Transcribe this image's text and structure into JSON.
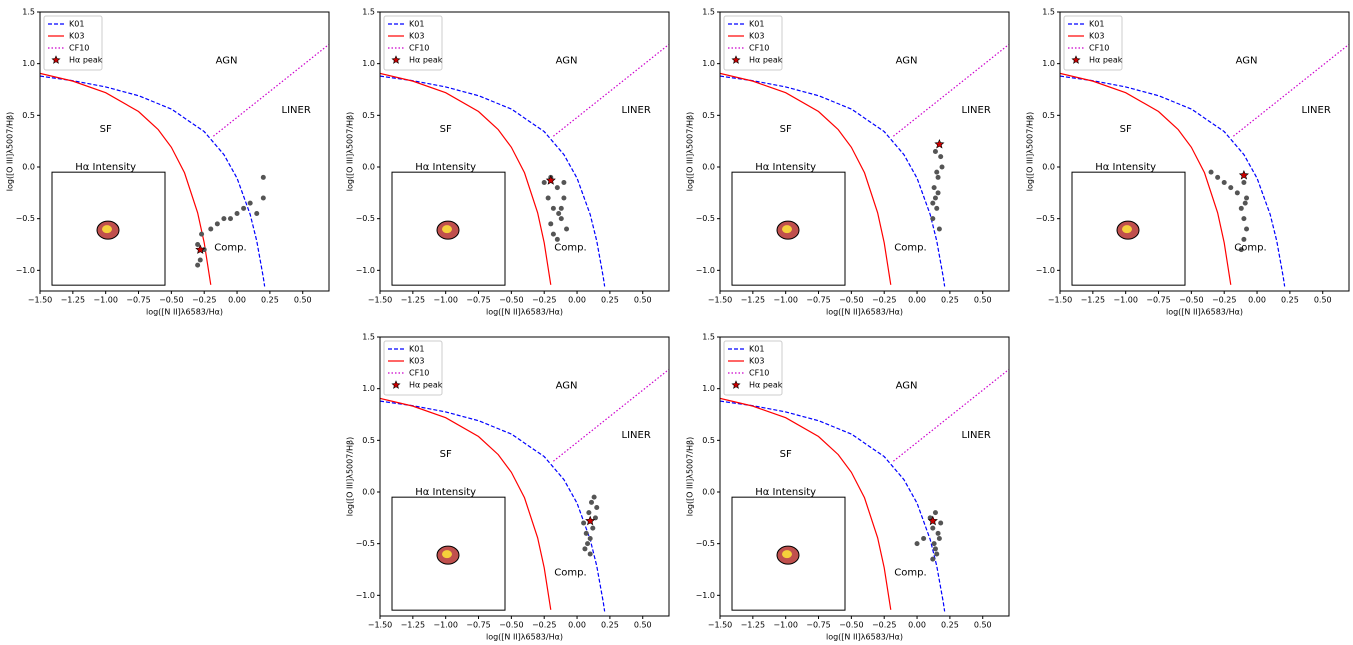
{
  "axes": {
    "xlabel": "log([N II]λ6583/Hα)",
    "ylabel": "log([O III]λ5007/Hβ)",
    "xlim": [
      -1.5,
      0.7
    ],
    "ylim": [
      -1.2,
      1.5
    ],
    "xticks": [
      {
        "value": -1.5,
        "label": "−1.50"
      },
      {
        "value": -1.25,
        "label": "−1.25"
      },
      {
        "value": -1.0,
        "label": "−1.00"
      },
      {
        "value": -0.75,
        "label": "−0.75"
      },
      {
        "value": -0.5,
        "label": "−0.50"
      },
      {
        "value": -0.25,
        "label": "−0.25"
      },
      {
        "value": 0,
        "label": "0.00"
      },
      {
        "value": 0.25,
        "label": "0.25"
      },
      {
        "value": 0.5,
        "label": "0.50"
      }
    ],
    "yticks": [
      {
        "value": -1.0,
        "label": "−1.0"
      },
      {
        "value": -0.5,
        "label": "−0.5"
      },
      {
        "value": 0,
        "label": "0.0"
      },
      {
        "value": 0.5,
        "label": "0.5"
      },
      {
        "value": 1.0,
        "label": "1.0"
      },
      {
        "value": 1.5,
        "label": "1.5"
      }
    ]
  },
  "reference_lines": [
    {
      "name": "K01",
      "color": "#0000ff",
      "style": "dashed",
      "x": [
        -1.5,
        -1.25,
        -1.0,
        -0.75,
        -0.5,
        -0.25,
        -0.1,
        0.0,
        0.1,
        0.15,
        0.2,
        0.21
      ],
      "y": [
        0.88,
        0.835,
        0.775,
        0.69,
        0.561,
        0.343,
        0.12,
        -0.108,
        -0.459,
        -0.716,
        -1.069,
        -1.156
      ]
    },
    {
      "name": "K03",
      "color": "#ff0000",
      "style": "solid",
      "x": [
        -1.5,
        -1.25,
        -1.0,
        -0.75,
        -0.6,
        -0.5,
        -0.4,
        -0.3,
        -0.25,
        -0.2
      ],
      "y": [
        0.906,
        0.831,
        0.719,
        0.537,
        0.362,
        0.191,
        -0.056,
        -0.443,
        -0.733,
        -1.14
      ]
    },
    {
      "name": "CF10",
      "color": "#cc00cc",
      "style": "dotted",
      "x": [
        -0.18,
        0.7
      ],
      "y": [
        0.298,
        1.187
      ]
    }
  ],
  "region_labels": [
    "AGN",
    "SF",
    "LINER",
    "Comp.",
    "Hα Intensity"
  ],
  "chart_data": [
    {
      "type": "scatter",
      "color": "#555555",
      "x": [
        -0.3,
        -0.28,
        -0.27,
        -0.25,
        -0.2,
        -0.15,
        -0.1,
        -0.05,
        0.0,
        0.05,
        0.1,
        0.15,
        0.2,
        0.2,
        -0.3
      ],
      "y": [
        -0.75,
        -0.9,
        -0.65,
        -0.8,
        -0.6,
        -0.55,
        -0.5,
        -0.5,
        -0.45,
        -0.4,
        -0.35,
        -0.45,
        -0.3,
        -0.1,
        -0.95
      ],
      "peak": {
        "name": "Hα peak",
        "color": "#cc0000",
        "x": -0.28,
        "y": -0.8
      }
    },
    {
      "type": "scatter",
      "color": "#555555",
      "x": [
        -0.25,
        -0.22,
        -0.2,
        -0.18,
        -0.15,
        -0.12,
        -0.1,
        -0.08,
        -0.2,
        -0.15,
        -0.12,
        -0.1,
        -0.18,
        -0.14
      ],
      "y": [
        -0.15,
        -0.3,
        -0.1,
        -0.4,
        -0.2,
        -0.5,
        -0.3,
        -0.6,
        -0.55,
        -0.7,
        -0.4,
        -0.15,
        -0.65,
        -0.45
      ],
      "peak": {
        "name": "Hα peak",
        "color": "#cc0000",
        "x": -0.2,
        "y": -0.13
      }
    },
    {
      "type": "scatter",
      "color": "#555555",
      "x": [
        0.12,
        0.14,
        0.16,
        0.18,
        0.13,
        0.15,
        0.17,
        0.19,
        0.14,
        0.16,
        0.12,
        0.15
      ],
      "y": [
        -0.5,
        -0.3,
        -0.1,
        0.1,
        -0.2,
        -0.4,
        -0.6,
        0.0,
        0.15,
        -0.25,
        -0.35,
        -0.05
      ],
      "peak": {
        "name": "Hα peak",
        "color": "#cc0000",
        "x": 0.17,
        "y": 0.22
      }
    },
    {
      "type": "scatter",
      "color": "#555555",
      "x": [
        -0.35,
        -0.3,
        -0.25,
        -0.2,
        -0.15,
        -0.1,
        -0.08,
        -0.12,
        -0.1,
        -0.08,
        -0.1,
        -0.12,
        -0.09
      ],
      "y": [
        -0.05,
        -0.1,
        -0.15,
        -0.2,
        -0.25,
        -0.15,
        -0.3,
        -0.4,
        -0.5,
        -0.6,
        -0.7,
        -0.8,
        -0.35
      ],
      "peak": {
        "name": "Hα peak",
        "color": "#cc0000",
        "x": -0.1,
        "y": -0.08
      }
    },
    {
      "type": "scatter",
      "color": "#555555",
      "x": [
        0.05,
        0.07,
        0.09,
        0.11,
        0.13,
        0.15,
        0.08,
        0.1,
        0.12,
        0.06,
        0.14,
        0.1
      ],
      "y": [
        -0.3,
        -0.4,
        -0.2,
        -0.1,
        -0.05,
        -0.15,
        -0.5,
        -0.6,
        -0.35,
        -0.55,
        -0.25,
        -0.45
      ],
      "peak": {
        "name": "Hα peak",
        "color": "#cc0000",
        "x": 0.1,
        "y": -0.28
      }
    },
    {
      "type": "scatter",
      "color": "#555555",
      "x": [
        0.1,
        0.12,
        0.14,
        0.16,
        0.18,
        0.13,
        0.15,
        0.17,
        0.12,
        0.14,
        0.0,
        0.05
      ],
      "y": [
        -0.25,
        -0.35,
        -0.2,
        -0.4,
        -0.3,
        -0.5,
        -0.6,
        -0.45,
        -0.65,
        -0.55,
        -0.5,
        -0.45
      ],
      "peak": {
        "name": "Hα peak",
        "color": "#cc0000",
        "x": 0.12,
        "y": -0.28
      }
    }
  ]
}
